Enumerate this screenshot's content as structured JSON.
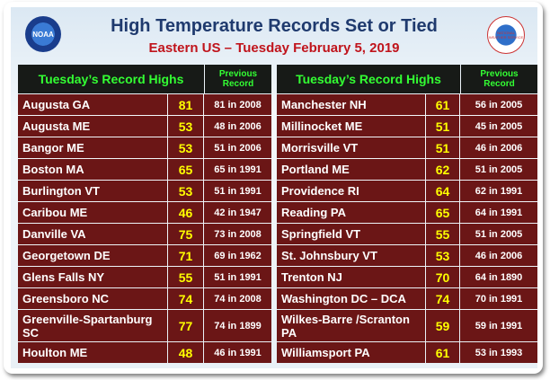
{
  "header": {
    "title": "High Temperature Records Set or Tied",
    "subtitle": "Eastern US – Tuesday February 5, 2019",
    "logo_left": "NOAA",
    "logo_right": "NATIONAL WEATHER SERVICE"
  },
  "tables": [
    {
      "columns": [
        "Tuesday’s Record Highs",
        "Previous Record"
      ],
      "rows": [
        [
          "Augusta GA",
          81,
          "81 in 2008"
        ],
        [
          "Augusta ME",
          53,
          "48 in 2006"
        ],
        [
          "Bangor ME",
          53,
          "51 in 2006"
        ],
        [
          "Boston MA",
          65,
          "65 in 1991"
        ],
        [
          "Burlington VT",
          53,
          "51 in 1991"
        ],
        [
          "Caribou ME",
          46,
          "42 in 1947"
        ],
        [
          "Danville VA",
          75,
          "73 in 2008"
        ],
        [
          "Georgetown DE",
          71,
          "69 in 1962"
        ],
        [
          "Glens Falls NY",
          55,
          "51 in 1991"
        ],
        [
          "Greensboro NC",
          74,
          "74 in 2008"
        ],
        [
          "Greenville-Spartanburg SC",
          77,
          "74 in 1899"
        ],
        [
          "Houlton ME",
          48,
          "46 in 1991"
        ]
      ]
    },
    {
      "columns": [
        "Tuesday’s Record Highs",
        "Previous Record"
      ],
      "rows": [
        [
          "Manchester NH",
          61,
          "56 in 2005"
        ],
        [
          "Millinocket ME",
          51,
          "45 in 2005"
        ],
        [
          "Morrisville VT",
          51,
          "46 in 2006"
        ],
        [
          "Portland ME",
          62,
          "51 in 2005"
        ],
        [
          "Providence RI",
          64,
          "62 in 1991"
        ],
        [
          "Reading PA",
          65,
          "64 in 1991"
        ],
        [
          "Springfield VT",
          55,
          "51 in 2005"
        ],
        [
          "St. Johnsbury VT",
          53,
          "46 in 2006"
        ],
        [
          "Trenton NJ",
          70,
          "64 in 1890"
        ],
        [
          "Washington DC – DCA",
          74,
          "70 in 1991"
        ],
        [
          "Wilkes-Barre /Scranton PA",
          59,
          "59 in 1991"
        ],
        [
          "Williamsport PA",
          61,
          "53 in 1993"
        ]
      ]
    }
  ]
}
